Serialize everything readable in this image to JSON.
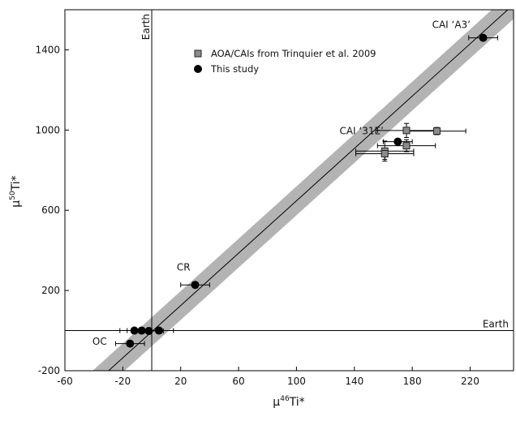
{
  "chart_data": {
    "type": "scatter",
    "xlabel": "μ46Ti*",
    "ylabel": "μ50Ti*",
    "xlim": [
      -60,
      250
    ],
    "ylim": [
      -200,
      1600
    ],
    "xticks": [
      -60,
      -20,
      20,
      60,
      100,
      140,
      180,
      220
    ],
    "yticks": [
      -200,
      200,
      600,
      1000,
      1400
    ],
    "grid": false,
    "legend_placement": "top-center",
    "colors": {
      "study": "#000000",
      "trinquier_fill": "#8c8c8c",
      "band": "#b3b3b3"
    },
    "reference_lines": [
      {
        "axis": "x",
        "value": 0,
        "label": "Earth"
      },
      {
        "axis": "y",
        "value": 0,
        "label": "Earth"
      }
    ],
    "fit_line": {
      "x": [
        -60,
        250
      ],
      "y": [
        -397,
        1626
      ]
    },
    "series": [
      {
        "name": "AOA/CAIs from Trinquier et al. 2009",
        "marker": "square",
        "points": [
          {
            "x": 176,
            "y": 998,
            "xerr": 20,
            "yerr": 35
          },
          {
            "x": 197,
            "y": 995,
            "xerr": 20,
            "yerr": 18
          },
          {
            "x": 176,
            "y": 922,
            "xerr": 20,
            "yerr": 30
          },
          {
            "x": 161,
            "y": 895,
            "xerr": 20,
            "yerr": 50
          },
          {
            "x": 161,
            "y": 882,
            "xerr": 20,
            "yerr": 28
          }
        ]
      },
      {
        "name": "This study",
        "marker": "circle",
        "points": [
          {
            "x": 229,
            "y": 1460,
            "xerr": 10,
            "yerr": 0
          },
          {
            "x": 170,
            "y": 942,
            "xerr": 10,
            "yerr": 0
          },
          {
            "x": 30,
            "y": 228,
            "xerr": 10,
            "yerr": 0
          },
          {
            "x": -12,
            "y": 0,
            "xerr": 10,
            "yerr": 0
          },
          {
            "x": -7,
            "y": 0,
            "xerr": 10,
            "yerr": 0
          },
          {
            "x": -2,
            "y": -2,
            "xerr": 10,
            "yerr": 0
          },
          {
            "x": 5,
            "y": 0,
            "xerr": 10,
            "yerr": 0
          },
          {
            "x": -15,
            "y": -65,
            "xerr": 10,
            "yerr": 0
          }
        ]
      }
    ],
    "annotations": [
      {
        "text": "CAI ‘A3’",
        "x": 207,
        "y": 1510
      },
      {
        "text": "CAI ‘31E’",
        "x": 145,
        "y": 980
      },
      {
        "text": "CR",
        "x": 22,
        "y": 300
      },
      {
        "text": "OC",
        "x": -36,
        "y": -70
      }
    ]
  }
}
